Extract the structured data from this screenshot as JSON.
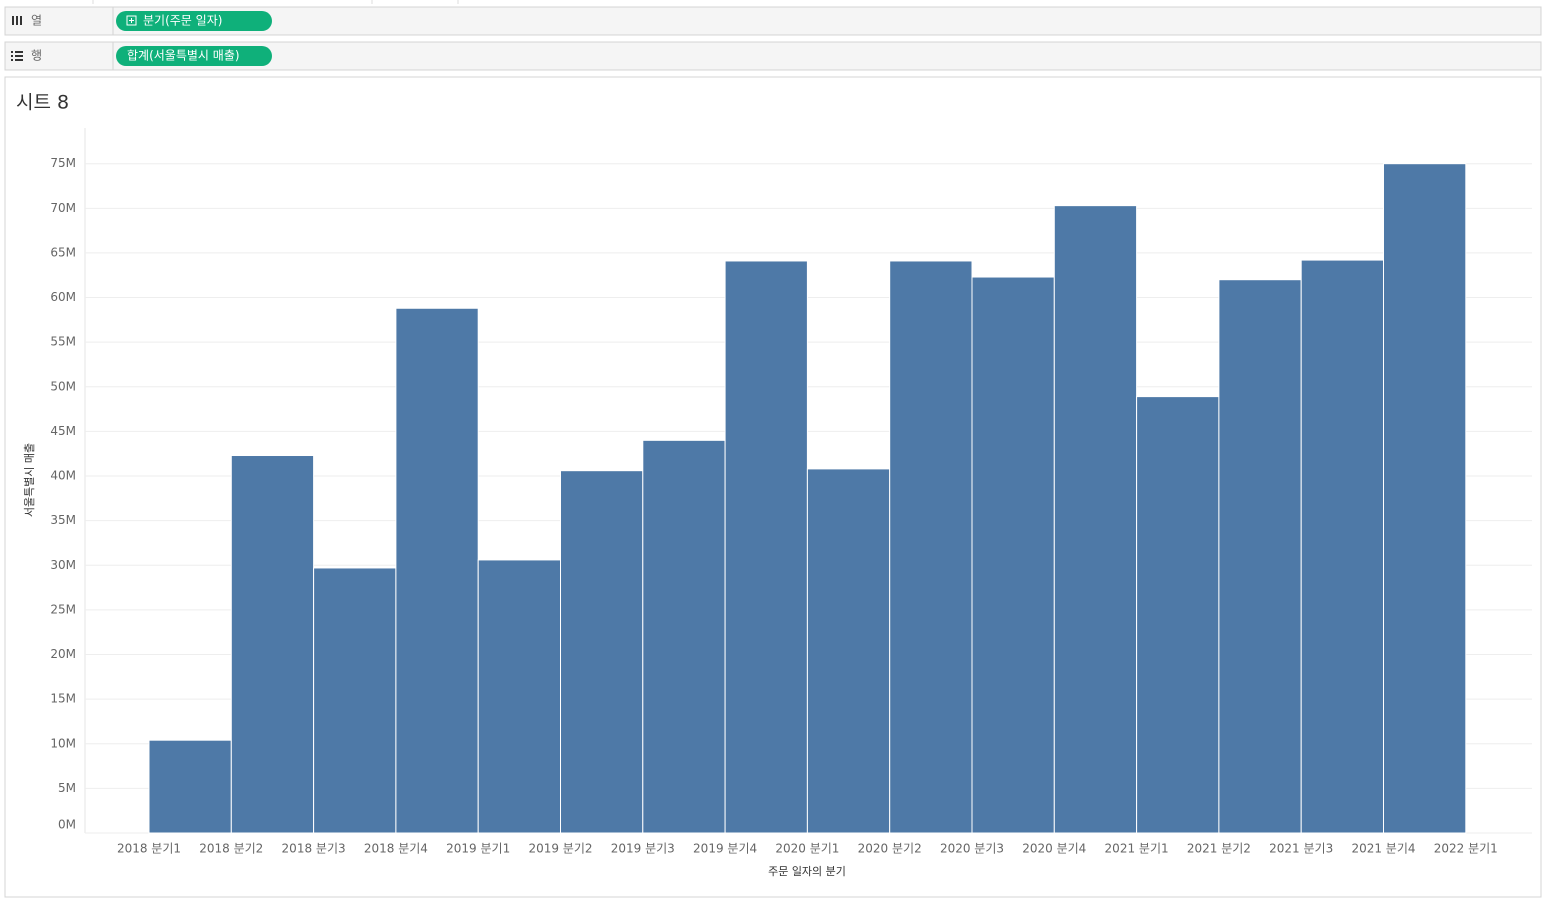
{
  "shelves": {
    "columns": {
      "label": "열",
      "pill": "분기(주문 일자)"
    },
    "rows": {
      "label": "행",
      "pill": "합계(서울특별시 매출)"
    }
  },
  "sheet_title": "시트 8",
  "chart_data": {
    "type": "bar",
    "y_label": "서울특별시 매출",
    "x_label": "주문 일자의 분기",
    "categories": [
      "2018 분기1",
      "2018 분기2",
      "2018 분기3",
      "2018 분기4",
      "2019 분기1",
      "2019 분기2",
      "2019 분기3",
      "2019 분기4",
      "2020 분기1",
      "2020 분기2",
      "2020 분기3",
      "2020 분기4",
      "2021 분기1",
      "2021 분기2",
      "2021 분기3",
      "2021 분기4",
      "2022 분기1"
    ],
    "values": [
      10400000,
      42300000,
      29700000,
      58800000,
      30600000,
      40600000,
      44000000,
      64100000,
      40800000,
      64100000,
      62300000,
      70300000,
      48900000,
      62000000,
      64200000,
      75000000,
      null
    ],
    "color": "#4e79a7",
    "ylim": [
      0,
      79000000
    ],
    "yticks": [
      {
        "value": 0,
        "label": "0M"
      },
      {
        "value": 5000000,
        "label": "5M"
      },
      {
        "value": 10000000,
        "label": "10M"
      },
      {
        "value": 15000000,
        "label": "15M"
      },
      {
        "value": 20000000,
        "label": "20M"
      },
      {
        "value": 25000000,
        "label": "25M"
      },
      {
        "value": 30000000,
        "label": "30M"
      },
      {
        "value": 35000000,
        "label": "35M"
      },
      {
        "value": 40000000,
        "label": "40M"
      },
      {
        "value": 45000000,
        "label": "45M"
      },
      {
        "value": 50000000,
        "label": "50M"
      },
      {
        "value": 55000000,
        "label": "55M"
      },
      {
        "value": 60000000,
        "label": "60M"
      },
      {
        "value": 65000000,
        "label": "65M"
      },
      {
        "value": 70000000,
        "label": "70M"
      },
      {
        "value": 75000000,
        "label": "75M"
      }
    ],
    "grid": true
  }
}
